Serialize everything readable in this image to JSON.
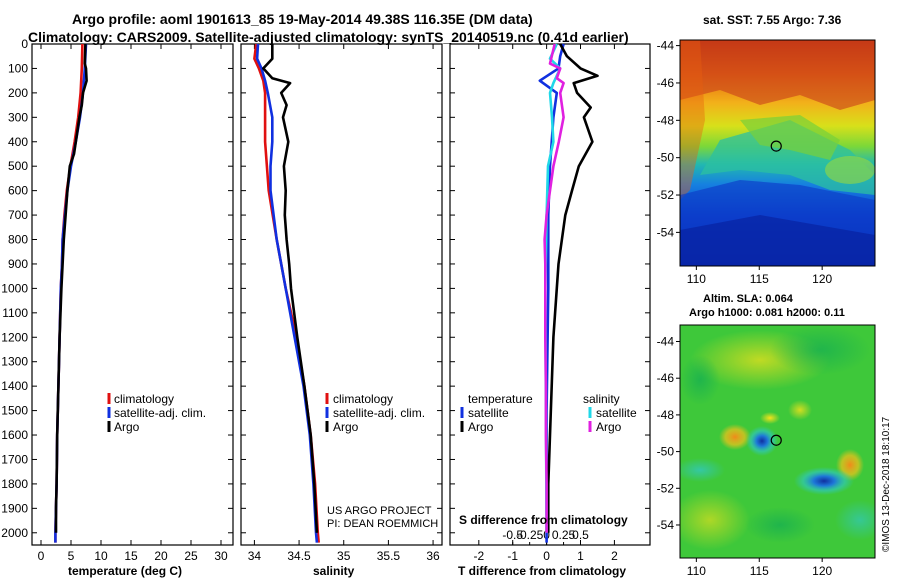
{
  "title_line1": "Argo profile: aoml 1901613_85 19-May-2014 49.38S 116.35E (DM data)",
  "title_line2": "Climatology: CARS2009. Satellite-adjusted climatology: synTS_20140519.nc (0.41d earlier)",
  "credit_line1": "US ARGO PROJECT",
  "credit_line2": "PI: DEAN ROEMMICH",
  "watermark": "©IMOS 13-Dec-2018 18:10:17",
  "colors": {
    "climatology": "#e01010",
    "satellite": "#1030e0",
    "argo": "#000000",
    "sat_sal": "#20d8e8",
    "argo_sal": "#e020e0"
  },
  "chart_data": [
    {
      "type": "line",
      "id": "temperature",
      "xlabel": "temperature (deg C)",
      "ylabel": "",
      "xlim": [
        -1.5,
        32
      ],
      "ylim": [
        2050,
        0
      ],
      "xticks": [
        0,
        5,
        10,
        15,
        20,
        25,
        30
      ],
      "xtick_labels": [
        "0",
        "5",
        "10",
        "15",
        "20",
        "25",
        "30"
      ],
      "yticks": [
        0,
        100,
        200,
        300,
        400,
        500,
        600,
        700,
        800,
        900,
        1000,
        1100,
        1200,
        1300,
        1400,
        1500,
        1600,
        1700,
        1800,
        1900,
        2000
      ],
      "legend": [
        "climatology",
        "satellite-adj. clim.",
        "Argo"
      ],
      "series": [
        {
          "name": "climatology",
          "color": "#e01010",
          "depth": [
            0,
            100,
            200,
            300,
            400,
            500,
            600,
            700,
            800,
            900,
            1000,
            1200,
            1400,
            1600,
            1800,
            2000,
            2040
          ],
          "values": [
            6.9,
            6.8,
            6.6,
            6.2,
            5.6,
            4.9,
            4.3,
            3.9,
            3.6,
            3.5,
            3.3,
            3.1,
            2.9,
            2.7,
            2.6,
            2.4,
            2.4
          ]
        },
        {
          "name": "satellite-adj. clim.",
          "color": "#1030e0",
          "depth": [
            0,
            100,
            200,
            300,
            400,
            500,
            600,
            700,
            800,
            900,
            1000,
            1200,
            1400,
            1600,
            1800,
            2000,
            2040
          ],
          "values": [
            7.5,
            7.3,
            7.0,
            6.5,
            5.8,
            5.0,
            4.4,
            4.0,
            3.6,
            3.5,
            3.3,
            3.1,
            2.9,
            2.7,
            2.6,
            2.4,
            2.4
          ]
        },
        {
          "name": "Argo",
          "color": "#000000",
          "depth": [
            0,
            80,
            100,
            150,
            200,
            250,
            300,
            400,
            450,
            500,
            600,
            700,
            800,
            900,
            1000,
            1200,
            1400,
            1600,
            1800,
            1900,
            2000
          ],
          "values": [
            7.4,
            7.3,
            7.5,
            7.6,
            7.0,
            6.8,
            6.4,
            5.8,
            5.5,
            4.8,
            4.4,
            4.1,
            3.8,
            3.6,
            3.4,
            3.1,
            2.9,
            2.7,
            2.6,
            2.5,
            2.5
          ]
        }
      ]
    },
    {
      "type": "line",
      "id": "salinity",
      "xlabel": "salinity",
      "xlim": [
        33.85,
        36.1
      ],
      "ylim": [
        2050,
        0
      ],
      "xticks": [
        34,
        34.5,
        35,
        35.5,
        36
      ],
      "xtick_labels": [
        "34",
        "34.5",
        "35",
        "35.5",
        "36"
      ],
      "legend": [
        "climatology",
        "satellite-adj. clim.",
        "Argo"
      ],
      "series": [
        {
          "name": "climatology",
          "color": "#e01010",
          "depth": [
            0,
            60,
            100,
            150,
            200,
            300,
            400,
            500,
            600,
            800,
            1000,
            1200,
            1400,
            1600,
            1800,
            2000,
            2040
          ],
          "values": [
            34.02,
            34.0,
            34.05,
            34.1,
            34.12,
            34.12,
            34.12,
            34.14,
            34.16,
            34.25,
            34.35,
            34.47,
            34.56,
            34.63,
            34.68,
            34.71,
            34.72
          ]
        },
        {
          "name": "satellite-adj. clim.",
          "color": "#1030e0",
          "depth": [
            0,
            60,
            100,
            150,
            200,
            300,
            400,
            500,
            600,
            800,
            1000,
            1200,
            1400,
            1600,
            1800,
            2000,
            2040
          ],
          "values": [
            34.04,
            34.03,
            34.08,
            34.12,
            34.15,
            34.2,
            34.2,
            34.18,
            34.18,
            34.25,
            34.35,
            34.45,
            34.55,
            34.62,
            34.66,
            34.69,
            34.7
          ]
        },
        {
          "name": "Argo",
          "color": "#000000",
          "depth": [
            0,
            60,
            100,
            140,
            160,
            200,
            250,
            300,
            400,
            500,
            600,
            700,
            800,
            900,
            1000,
            1200,
            1400,
            1600,
            1800,
            2000
          ],
          "values": [
            34.2,
            34.2,
            34.1,
            34.2,
            34.4,
            34.3,
            34.36,
            34.32,
            34.38,
            34.33,
            34.35,
            34.34,
            34.36,
            34.39,
            34.41,
            34.48,
            34.56,
            34.63,
            34.67,
            34.7
          ]
        }
      ]
    },
    {
      "type": "line",
      "id": "differences",
      "xlabel": "T difference from climatology",
      "xlabel_top": "S difference from climatology",
      "xlim": [
        -2.85,
        3.05
      ],
      "ylim": [
        2050,
        0
      ],
      "xticks": [
        -2,
        -1,
        0,
        1,
        2
      ],
      "xtick_labels": [
        "-2",
        "-1",
        "0",
        "1",
        "2"
      ],
      "s_xticks": [
        -0.5,
        -0.25,
        0,
        0.25,
        0.5
      ],
      "s_xtick_labels": [
        "-0.5",
        "-0.25",
        "0",
        "0.25",
        "0.5"
      ],
      "legend_left_title": "temperature",
      "legend_right_title": "salinity",
      "legend": [
        "satellite",
        "Argo",
        "satellite",
        "Argo"
      ],
      "series": [
        {
          "name": "temperature satellite",
          "color": "#1030e0",
          "axis": "T",
          "depth": [
            0,
            50,
            100,
            150,
            200,
            300,
            400,
            500,
            700,
            1000,
            1500,
            2040
          ],
          "values": [
            0.5,
            0.4,
            0.35,
            -0.2,
            0.3,
            0.2,
            0.15,
            0.1,
            0.05,
            0.05,
            0.0,
            0.0
          ]
        },
        {
          "name": "temperature Argo",
          "color": "#000000",
          "axis": "T",
          "depth": [
            0,
            50,
            100,
            130,
            160,
            200,
            260,
            300,
            400,
            500,
            600,
            700,
            800,
            900,
            1000,
            1200,
            1400,
            1600,
            1800,
            2000
          ],
          "values": [
            0.4,
            0.6,
            1.0,
            1.5,
            0.8,
            0.9,
            1.3,
            1.1,
            1.35,
            0.95,
            0.75,
            0.55,
            0.45,
            0.35,
            0.3,
            0.2,
            0.15,
            0.1,
            0.05,
            0.05
          ]
        },
        {
          "name": "salinity satellite",
          "color": "#20d8e8",
          "axis": "S",
          "depth": [
            0,
            60,
            100,
            160,
            200,
            300,
            400,
            500,
            700,
            1000,
            1500,
            2000
          ],
          "values": [
            0.15,
            0.05,
            0.2,
            0.1,
            0.05,
            0.08,
            0.1,
            0.02,
            0.0,
            -0.02,
            -0.01,
            0.0
          ]
        },
        {
          "name": "salinity Argo",
          "color": "#e020e0",
          "axis": "S",
          "depth": [
            0,
            80,
            100,
            140,
            160,
            200,
            300,
            400,
            500,
            600,
            700,
            800,
            900,
            1000,
            1200,
            1400,
            1600,
            1800,
            2000
          ],
          "values": [
            0.12,
            0.05,
            0.2,
            0.15,
            0.25,
            0.2,
            0.25,
            0.18,
            0.1,
            0.05,
            0.0,
            -0.03,
            -0.02,
            -0.02,
            -0.02,
            -0.01,
            -0.01,
            0.0,
            0.0
          ]
        }
      ]
    },
    {
      "type": "heatmap",
      "id": "sst-map",
      "title": "sat. SST: 7.55 Argo: 7.36",
      "xlim": [
        108.7,
        124.2
      ],
      "ylim": [
        -55.8,
        -43.7
      ],
      "xticks": [
        110,
        115,
        120
      ],
      "xtick_labels": [
        "110",
        "115",
        "120"
      ],
      "yticks": [
        -44,
        -46,
        -48,
        -50,
        -52,
        -54
      ],
      "ytick_labels": [
        "-44",
        "-46",
        "-48",
        "-50",
        "-52",
        "-54"
      ],
      "marker": {
        "lon": 116.35,
        "lat": -49.38
      }
    },
    {
      "type": "heatmap",
      "id": "sla-map",
      "title_line1": "Altim. SLA: 0.064",
      "title_line2": "Argo h1000: 0.081 h2000: 0.11",
      "xlim": [
        108.7,
        124.2
      ],
      "ylim": [
        -55.8,
        -43.1
      ],
      "xticks": [
        110,
        115,
        120
      ],
      "xtick_labels": [
        "110",
        "115",
        "120"
      ],
      "yticks": [
        -44,
        -46,
        -48,
        -50,
        -52,
        -54
      ],
      "ytick_labels": [
        "-44",
        "-46",
        "-48",
        "-50",
        "-52",
        "-54"
      ],
      "marker": {
        "lon": 116.35,
        "lat": -49.38
      }
    }
  ]
}
